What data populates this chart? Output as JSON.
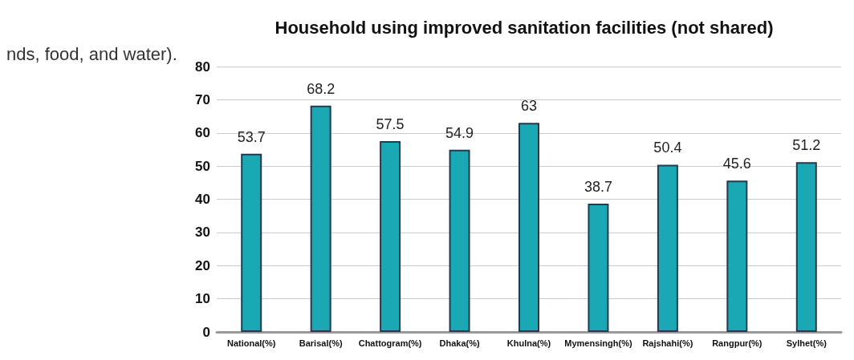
{
  "chart_data": {
    "type": "bar",
    "title": "Household using improved sanitation facilities (not shared)",
    "categories": [
      "National(%)",
      "Barisal(%)",
      "Chattogram(%)",
      "Dhaka(%)",
      "Khulna(%)",
      "Mymensingh(%)",
      "Rajshahi(%)",
      "Rangpur(%)",
      "Sylhet(%)"
    ],
    "values": [
      53.7,
      68.2,
      57.5,
      54.9,
      63,
      38.7,
      50.4,
      45.6,
      51.2
    ],
    "color": "#1aa9b4",
    "ylim": [
      0,
      80
    ],
    "yticks": [
      0,
      10,
      20,
      30,
      40,
      50,
      60,
      70,
      80
    ],
    "grid": "y",
    "data_labels": true,
    "annotations": [
      "nds, food, and water)."
    ]
  }
}
